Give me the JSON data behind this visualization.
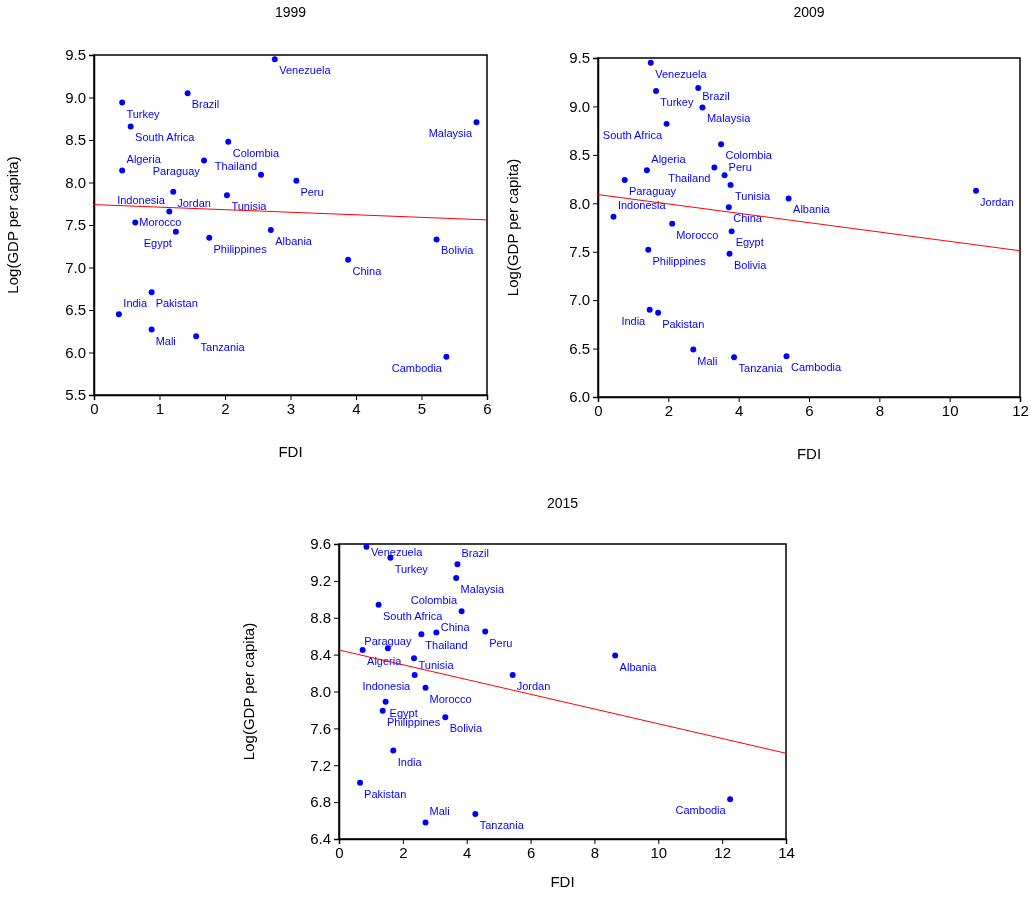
{
  "chart_data": [
    {
      "type": "scatter",
      "title": "1999",
      "xlabel": "FDI",
      "ylabel": "Log(GDP per capita)",
      "xlim": [
        0,
        6
      ],
      "ylim": [
        5.5,
        9.5
      ],
      "xticks": [
        0,
        1,
        2,
        3,
        4,
        5,
        6
      ],
      "yticks": [
        {
          "value": 5.5,
          "label": "5.5"
        },
        {
          "value": 6,
          "label": "6.0"
        },
        {
          "value": 6.5,
          "label": "6.5"
        },
        {
          "value": 7,
          "label": "7.0"
        },
        {
          "value": 7.5,
          "label": "7.5"
        },
        {
          "value": 8,
          "label": "8.0"
        },
        {
          "value": 8.5,
          "label": "8.5"
        },
        {
          "value": 9,
          "label": "9.0"
        },
        {
          "value": 9.5,
          "label": "9.5"
        }
      ],
      "series": [
        {
          "type": "scatter",
          "marker": "circle",
          "color": "#0000ff",
          "x": [
            2.76,
            0.43,
            1.43,
            0.56,
            5.84,
            2.05,
            1.68,
            0.43,
            2.55,
            3.09,
            1.21,
            2.03,
            1.15,
            0.63,
            1.25,
            1.76,
            2.7,
            5.23,
            3.88,
            0.88,
            0.38,
            0.88,
            1.56,
            5.38
          ],
          "values": [
            9.45,
            8.94,
            9.05,
            8.66,
            8.71,
            8.48,
            8.26,
            8.14,
            8.09,
            8.02,
            7.89,
            7.85,
            7.66,
            7.53,
            7.42,
            7.35,
            7.44,
            7.33,
            7.09,
            6.71,
            6.45,
            6.27,
            6.19,
            5.95
          ],
          "value_labels": [
            "Venezuela",
            "Turkey",
            "Brazil",
            "South Africa",
            "Malaysia",
            "Colombia",
            "Paraguay",
            "Algeria",
            "Thailand",
            "Peru",
            "Jordan",
            "Tunisia",
            "Indonesia",
            "Morocco",
            "Egypt",
            "Philippines",
            "Albania",
            "Bolivia",
            "China",
            "Pakistan",
            "India",
            "Mali",
            "Tanzania",
            "Cambodia"
          ]
        },
        {
          "type": "line",
          "color": "#ff0000",
          "x": [
            0,
            6
          ],
          "values": [
            7.74,
            7.56
          ]
        }
      ]
    },
    {
      "type": "scatter",
      "title": "2009",
      "xlabel": "FDI",
      "ylabel": "Log(GDP per capita)",
      "xlim": [
        0,
        12
      ],
      "ylim": [
        6,
        9.5
      ],
      "xticks": [
        0,
        2,
        4,
        6,
        8,
        10,
        12
      ],
      "yticks": [
        {
          "value": 6,
          "label": "6.0"
        },
        {
          "value": 6.5,
          "label": "6.5"
        },
        {
          "value": 7,
          "label": "7.0"
        },
        {
          "value": 7.5,
          "label": "7.5"
        },
        {
          "value": 8,
          "label": "8.0"
        },
        {
          "value": 8.5,
          "label": "8.5"
        },
        {
          "value": 9,
          "label": "9.0"
        },
        {
          "value": 9.5,
          "label": "9.5"
        }
      ],
      "series": [
        {
          "type": "scatter",
          "marker": "circle",
          "color": "#0000ff",
          "x": [
            1.5,
            1.65,
            2.85,
            2.97,
            1.95,
            3.5,
            3.31,
            1.39,
            3.6,
            0.76,
            3.77,
            10.75,
            5.42,
            3.72,
            0.44,
            2.11,
            3.8,
            1.43,
            3.74,
            1.47,
            1.71,
            2.71,
            3.87,
            5.36
          ],
          "values": [
            9.45,
            9.16,
            9.19,
            8.99,
            8.82,
            8.61,
            8.37,
            8.34,
            8.29,
            8.24,
            8.19,
            8.13,
            8.05,
            7.96,
            7.86,
            7.79,
            7.71,
            7.52,
            7.48,
            6.9,
            6.87,
            6.49,
            6.41,
            6.42
          ],
          "value_labels": [
            "Venezuela",
            "Turkey",
            "Brazil",
            "Malaysia",
            "South Africa",
            "Colombia",
            "Thailand",
            "Algeria",
            "Peru",
            "Paraguay",
            "Tunisia",
            "Jordan",
            "Albania",
            "China",
            "Indonesia",
            "Morocco",
            "Egypt",
            "Philippines",
            "Bolivia",
            "India",
            "Pakistan",
            "Mali",
            "Tanzania",
            "Cambodia"
          ]
        },
        {
          "type": "line",
          "color": "#ff0000",
          "x": [
            0,
            12
          ],
          "values": [
            8.09,
            7.51
          ]
        }
      ]
    },
    {
      "type": "scatter",
      "title": "2015",
      "xlabel": "FDI",
      "ylabel": "Log(GDP per capita)",
      "xlim": [
        0,
        14
      ],
      "ylim": [
        6.4,
        9.6
      ],
      "xticks": [
        0,
        2,
        4,
        6,
        8,
        10,
        12,
        14
      ],
      "yticks": [
        6.4,
        6.8,
        7.2,
        7.6,
        {
          "value": 8,
          "label": "8.0"
        },
        8.4,
        8.8,
        9.2,
        9.6
      ],
      "series": [
        {
          "type": "scatter",
          "marker": "circle",
          "color": "#0000ff",
          "x": [
            0.86,
            1.61,
            3.71,
            3.67,
            1.24,
            3.84,
            2.58,
            3.05,
            4.58,
            0.74,
            1.53,
            2.35,
            8.65,
            2.37,
            5.44,
            2.71,
            1.46,
            1.37,
            3.33,
            1.7,
            0.66,
            12.25,
            4.27,
            2.71
          ],
          "values": [
            9.57,
            9.45,
            9.38,
            9.23,
            8.94,
            8.87,
            8.62,
            8.64,
            8.65,
            8.45,
            8.47,
            8.36,
            8.39,
            8.18,
            8.18,
            8.04,
            7.89,
            7.79,
            7.72,
            7.36,
            7.01,
            6.83,
            6.67,
            6.58
          ],
          "value_labels": [
            "Venezuela",
            "Turkey",
            "Brazil",
            "Malaysia",
            "South Africa",
            "Colombia",
            "Thailand",
            "China",
            "Peru",
            "Algeria",
            "Paraguay",
            "Tunisia",
            "Albania",
            "Indonesia",
            "Jordan",
            "Morocco",
            "Egypt",
            "Philippines",
            "Bolivia",
            "India",
            "Pakistan",
            "Cambodia",
            "Tanzania",
            "Mali"
          ]
        },
        {
          "type": "line",
          "color": "#ff0000",
          "x": [
            0,
            14
          ],
          "values": [
            8.45,
            7.33
          ]
        }
      ]
    }
  ]
}
